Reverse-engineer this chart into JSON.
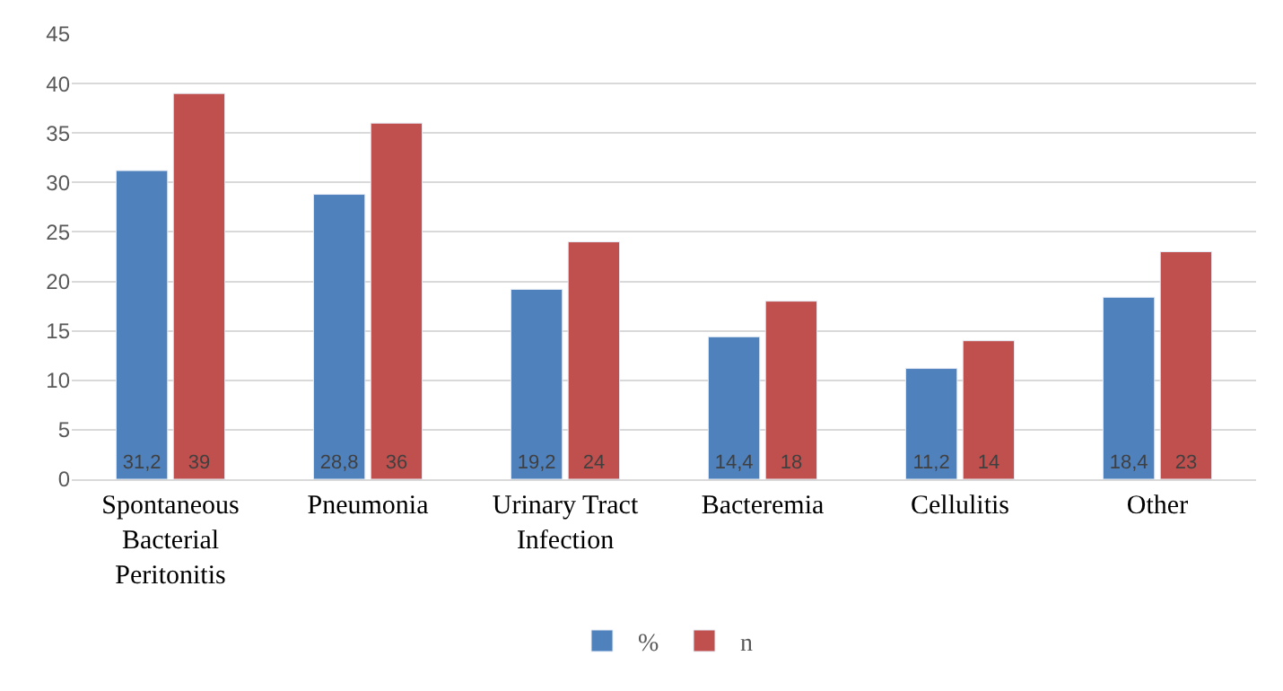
{
  "chart_data": {
    "type": "bar",
    "categories": [
      "Spontaneous Bacterial Peritonitis",
      "Pneumonia",
      "Urinary Tract Infection",
      "Bacteremia",
      "Cellulitis",
      "Other"
    ],
    "series": [
      {
        "name": "%",
        "color": "#4f81bd",
        "values": [
          31.2,
          28.8,
          19.2,
          14.4,
          11.2,
          18.4
        ],
        "value_labels": [
          "31,2",
          "28,8",
          "19,2",
          "14,4",
          "11,2",
          "18,4"
        ]
      },
      {
        "name": "n",
        "color": "#c0504d",
        "values": [
          39,
          36,
          24,
          18,
          14,
          23
        ],
        "value_labels": [
          "39",
          "36",
          "24",
          "18",
          "14",
          "23"
        ]
      }
    ],
    "ylim": [
      0,
      45
    ],
    "yticks": [
      0,
      5,
      10,
      15,
      20,
      25,
      30,
      35,
      40,
      45
    ],
    "grid": "y",
    "legend": "bottom"
  }
}
